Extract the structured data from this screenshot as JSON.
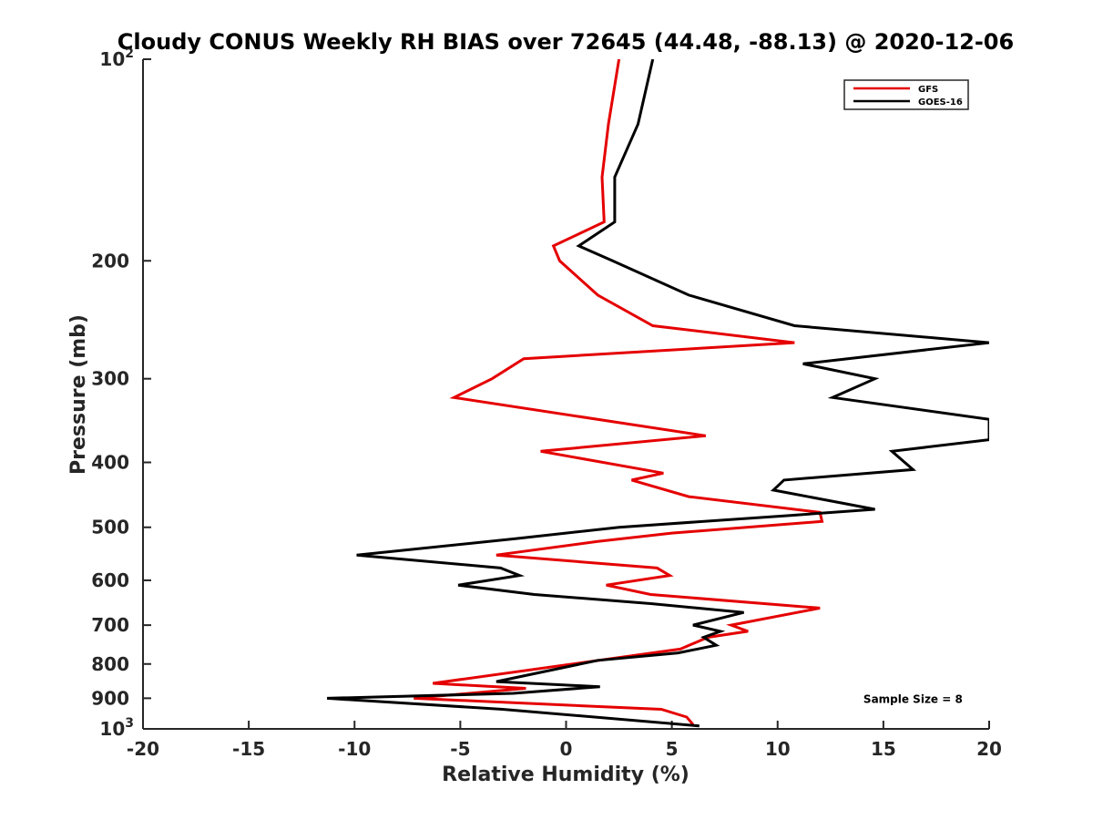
{
  "chart_data": {
    "type": "line",
    "title": "Cloudy CONUS Weekly RH BIAS over 72645 (44.48, -88.13) @ 2020-12-06",
    "xlabel": "Relative Humidity (%)",
    "ylabel": "Pressure (mb)",
    "xlim": [
      -20,
      20
    ],
    "ylim": [
      100,
      1000
    ],
    "y_scale": "log",
    "y_reversed": true,
    "grid": false,
    "legend_position": "top-right",
    "x_ticks": [
      "-20",
      "-15",
      "-10",
      "-5",
      "0",
      "5",
      "10",
      "15",
      "20"
    ],
    "y_ticks": [
      {
        "value": 100,
        "base": "10",
        "exp": "2",
        "label": ""
      },
      {
        "value": 200,
        "label": "200"
      },
      {
        "value": 300,
        "label": "300"
      },
      {
        "value": 400,
        "label": "400"
      },
      {
        "value": 500,
        "label": "500"
      },
      {
        "value": 600,
        "label": "600"
      },
      {
        "value": 700,
        "label": "700"
      },
      {
        "value": 800,
        "label": "800"
      },
      {
        "value": 900,
        "label": "900"
      },
      {
        "value": 1000,
        "base": "10",
        "exp": "3",
        "label": ""
      }
    ],
    "series": [
      {
        "name": "GFS",
        "color": "#e50000",
        "points": [
          [
            2.5,
            100
          ],
          [
            2.0,
            125
          ],
          [
            1.7,
            150
          ],
          [
            1.8,
            175
          ],
          [
            -0.6,
            190
          ],
          [
            -0.3,
            200
          ],
          [
            1.5,
            225
          ],
          [
            4.1,
            250
          ],
          [
            10.8,
            265
          ],
          [
            -2.0,
            280
          ],
          [
            -3.5,
            300
          ],
          [
            -5.3,
            320
          ],
          [
            6.6,
            365
          ],
          [
            -1.2,
            385
          ],
          [
            4.6,
            415
          ],
          [
            3.1,
            425
          ],
          [
            5.8,
            450
          ],
          [
            12.0,
            475
          ],
          [
            12.1,
            490
          ],
          [
            5.0,
            510
          ],
          [
            1.5,
            525
          ],
          [
            -3.3,
            550
          ],
          [
            4.3,
            575
          ],
          [
            4.9,
            590
          ],
          [
            1.9,
            610
          ],
          [
            4.0,
            630
          ],
          [
            12.0,
            660
          ],
          [
            7.8,
            700
          ],
          [
            8.6,
            715
          ],
          [
            6.7,
            730
          ],
          [
            5.4,
            760
          ],
          [
            -6.3,
            855
          ],
          [
            -1.9,
            870
          ],
          [
            -7.2,
            900
          ],
          [
            4.5,
            935
          ],
          [
            5.7,
            960
          ],
          [
            6.0,
            985
          ]
        ]
      },
      {
        "name": "GOES-16",
        "color": "#000000",
        "points": [
          [
            4.1,
            100
          ],
          [
            3.4,
            125
          ],
          [
            2.3,
            150
          ],
          [
            2.3,
            175
          ],
          [
            0.6,
            190
          ],
          [
            2.2,
            200
          ],
          [
            5.8,
            225
          ],
          [
            10.8,
            250
          ],
          [
            20.0,
            265
          ],
          [
            11.2,
            285
          ],
          [
            14.6,
            300
          ],
          [
            12.6,
            320
          ],
          [
            20.0,
            345
          ],
          [
            20.0,
            370
          ],
          [
            15.4,
            385
          ],
          [
            16.4,
            410
          ],
          [
            10.3,
            425
          ],
          [
            9.8,
            440
          ],
          [
            14.6,
            470
          ],
          [
            10.6,
            480
          ],
          [
            2.5,
            500
          ],
          [
            -2.4,
            520
          ],
          [
            -9.9,
            550
          ],
          [
            -3.1,
            575
          ],
          [
            -2.2,
            590
          ],
          [
            -5.1,
            610
          ],
          [
            -1.5,
            630
          ],
          [
            4.0,
            650
          ],
          [
            8.4,
            670
          ],
          [
            6.0,
            700
          ],
          [
            7.3,
            715
          ],
          [
            6.5,
            730
          ],
          [
            7.1,
            750
          ],
          [
            5.3,
            770
          ],
          [
            1.5,
            790
          ],
          [
            -3.3,
            850
          ],
          [
            1.6,
            865
          ],
          [
            -2.5,
            885
          ],
          [
            -11.3,
            900
          ],
          [
            -3.0,
            935
          ],
          [
            6.3,
            990
          ]
        ]
      }
    ],
    "annotations": [
      {
        "text": "Sample Size = 8",
        "x": 16.4,
        "y": 900
      }
    ]
  }
}
